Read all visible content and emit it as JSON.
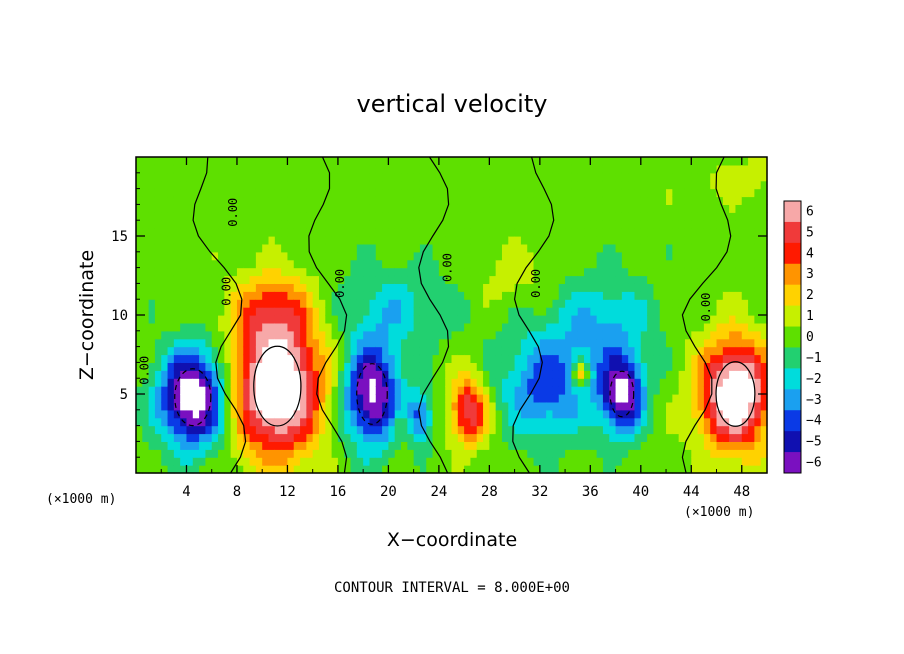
{
  "chart_data": {
    "type": "heatmap",
    "title": "vertical velocity",
    "xlabel": "X−coordinate",
    "ylabel": "Z−coordinate",
    "x_unit": "(×1000 m)",
    "z_unit": "(×1000 m)",
    "xlim": [
      0,
      50
    ],
    "ylim": [
      0,
      20
    ],
    "x_ticks": [
      4,
      8,
      12,
      16,
      20,
      24,
      28,
      32,
      36,
      40,
      44,
      48
    ],
    "x_tick_labels": [
      "4",
      "8",
      "12",
      "16",
      "20",
      "24",
      "28",
      "32",
      "36",
      "40",
      "44",
      "48"
    ],
    "y_ticks": [
      5,
      10,
      15
    ],
    "y_tick_labels": [
      "5",
      "10",
      "15"
    ],
    "colorbar": {
      "levels": [
        6,
        5,
        4,
        3,
        2,
        1,
        0,
        -1,
        -2,
        -3,
        -4,
        -5,
        -6
      ],
      "labels": [
        "6",
        "5",
        "4",
        "3",
        "2",
        "1",
        "0",
        "−1",
        "−2",
        "−3",
        "−4",
        "−5",
        "−6"
      ],
      "colors": [
        "#f7a8a8",
        "#f03a3a",
        "#ff1a00",
        "#ff9400",
        "#ffd200",
        "#c6f000",
        "#5ee000",
        "#22d070",
        "#00dcdc",
        "#1aa0f0",
        "#0a3ae6",
        "#1010b0",
        "#7a10c0"
      ]
    },
    "background_level": 0,
    "features": [
      {
        "x": 4.5,
        "z": 4.8,
        "sx": 2.6,
        "sz": 3.0,
        "w": -8
      },
      {
        "x": 11.2,
        "z": 5.5,
        "sx": 3.4,
        "sz": 4.2,
        "w": 9
      },
      {
        "x": 10.8,
        "z": 10.5,
        "sx": 3.0,
        "sz": 2.2,
        "w": 3
      },
      {
        "x": 18.7,
        "z": 5.0,
        "sx": 2.2,
        "sz": 3.2,
        "w": -7
      },
      {
        "x": 22.5,
        "z": 3.5,
        "sx": 1.0,
        "sz": 1.6,
        "w": -4
      },
      {
        "x": 21.0,
        "z": 3.0,
        "sx": 1.0,
        "sz": 1.2,
        "w": 1.5
      },
      {
        "x": 26.4,
        "z": 4.0,
        "sx": 1.5,
        "sz": 2.1,
        "w": 5.5
      },
      {
        "x": 20.5,
        "z": 10.5,
        "sx": 4.5,
        "sz": 2.5,
        "w": -2
      },
      {
        "x": 32.5,
        "z": 5.5,
        "sx": 3.5,
        "sz": 3.2,
        "w": -4
      },
      {
        "x": 37.0,
        "z": 9.5,
        "sx": 4.0,
        "sz": 3.0,
        "w": -2.5
      },
      {
        "x": 35.2,
        "z": 6.3,
        "sx": 0.7,
        "sz": 0.9,
        "w": 4
      },
      {
        "x": 38.5,
        "z": 5.0,
        "sx": 1.7,
        "sz": 2.4,
        "w": -7
      },
      {
        "x": 47.5,
        "z": 5.0,
        "sx": 2.8,
        "sz": 3.4,
        "w": 8.5
      },
      {
        "x": 30.0,
        "z": 12.5,
        "sx": 3.0,
        "sz": 1.8,
        "w": 1
      },
      {
        "x": 48.0,
        "z": 18.5,
        "sx": 3.0,
        "sz": 1.2,
        "w": 1.2
      }
    ],
    "contour_labels": [
      "0.00",
      "0.00",
      "0.00",
      "0.00",
      "0.00",
      "0.00",
      "0.00"
    ],
    "contour_interval_text": "CONTOUR INTERVAL = 8.000E+00"
  }
}
